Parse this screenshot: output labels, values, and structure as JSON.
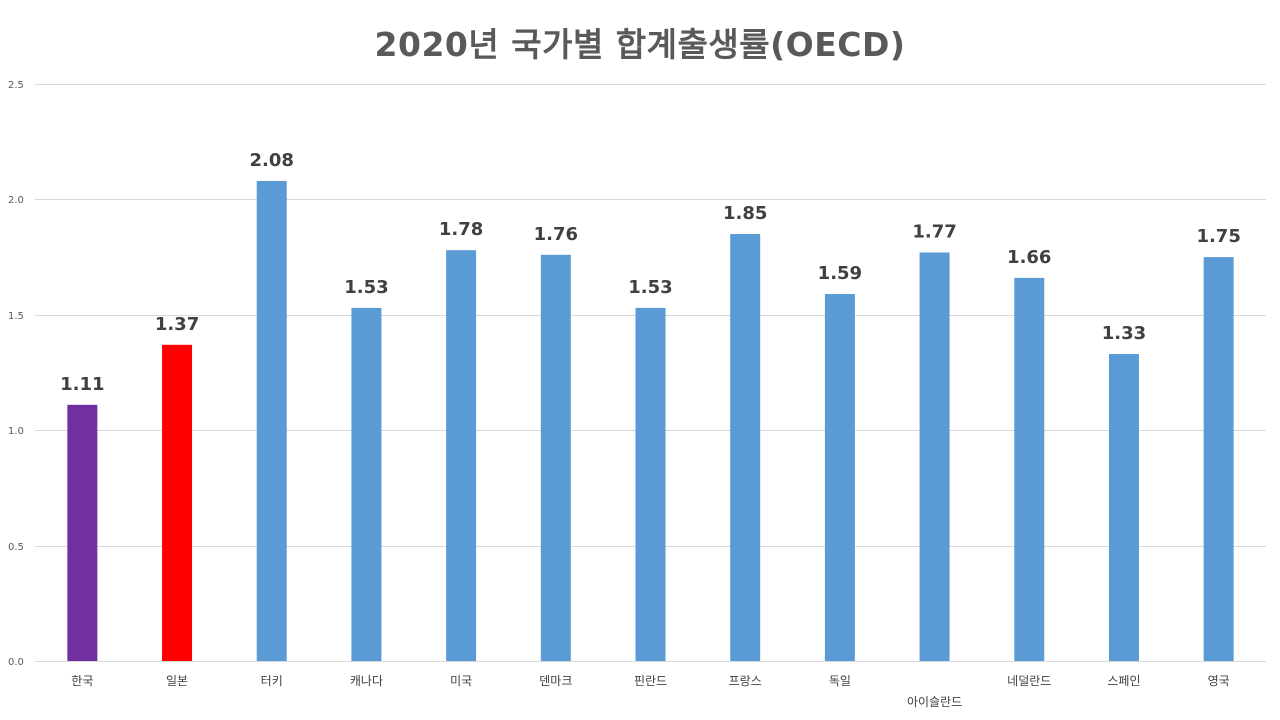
{
  "chart_data": {
    "type": "bar",
    "title": "2020년 국가별 합계출생률(OECD)",
    "xlabel": "",
    "ylabel": "",
    "categories": [
      "한국",
      "일본",
      "터키",
      "캐나다",
      "미국",
      "덴마크",
      "핀란드",
      "프랑스",
      "독일",
      "아이슬란드",
      "네덜란드",
      "스페인",
      "영국"
    ],
    "values": [
      1.11,
      1.37,
      2.08,
      1.53,
      1.78,
      1.76,
      1.53,
      1.85,
      1.59,
      1.77,
      1.66,
      1.33,
      1.75
    ],
    "data_labels": [
      "1.11",
      "1.37",
      "2.08",
      "1.53",
      "1.78",
      "1.76",
      "1.53",
      "1.85",
      "1.59",
      "1.77",
      "1.66",
      "1.33",
      "1.75"
    ],
    "y_ticks": [
      "0.0",
      "0.5",
      "1.0",
      "1.5",
      "2.0",
      "2.5"
    ],
    "ylim": [
      0,
      2.5
    ],
    "grid": true,
    "legend": "none",
    "bar_colors": [
      "#7030a0",
      "#ff0000",
      "#5b9bd5",
      "#5b9bd5",
      "#5b9bd5",
      "#5b9bd5",
      "#5b9bd5",
      "#5b9bd5",
      "#5b9bd5",
      "#5b9bd5",
      "#5b9bd5",
      "#5b9bd5",
      "#5b9bd5"
    ],
    "colors": {
      "korea": "#7030a0",
      "japan": "#ff0000",
      "default": "#5b9bd5",
      "grid": "#d9d9d9",
      "title": "#595959",
      "label": "#404040"
    }
  }
}
